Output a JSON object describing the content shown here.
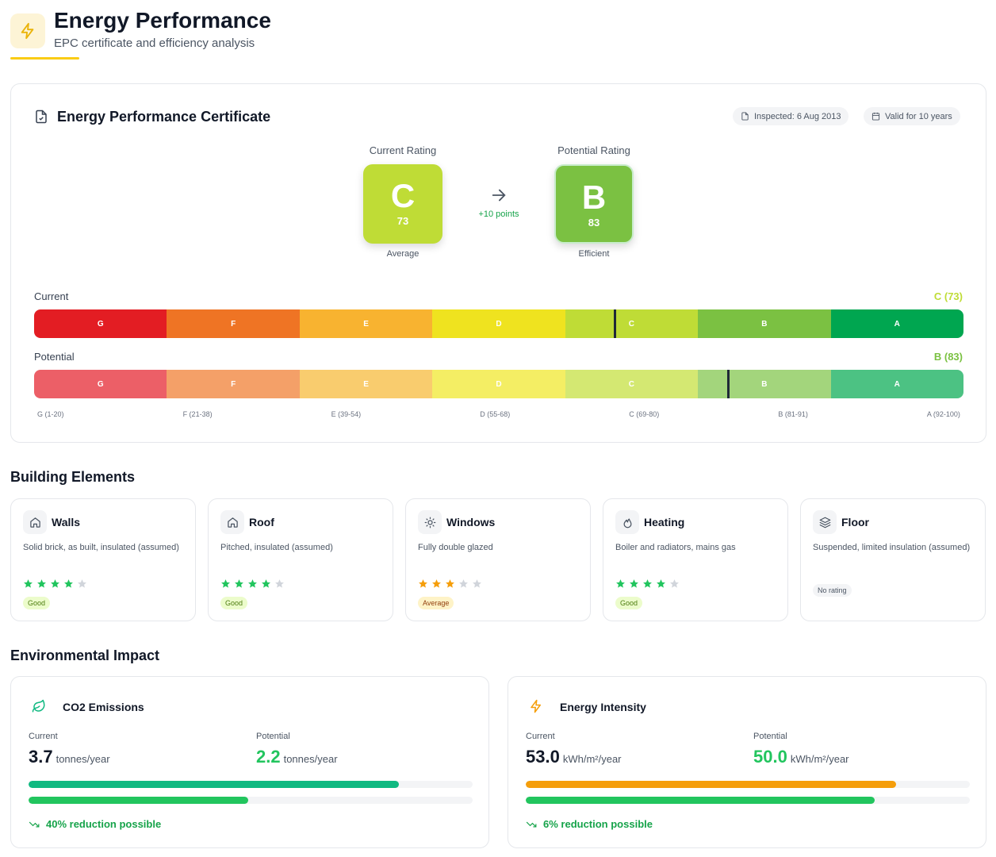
{
  "header": {
    "title": "Energy Performance",
    "subtitle": "EPC certificate and efficiency analysis"
  },
  "certificate": {
    "title": "Energy Performance Certificate",
    "inspected": "Inspected: 6 Aug 2013",
    "validity": "Valid for 10 years",
    "current": {
      "label": "Current Rating",
      "rating": "C",
      "score": 73,
      "description": "Average",
      "color": "#bfdc36"
    },
    "potential": {
      "label": "Potential Rating",
      "rating": "B",
      "score": 83,
      "description": "Efficient",
      "color": "#7bc142"
    },
    "improvement": "+10 points",
    "scale": {
      "current_label": "Current",
      "current_value": "C (73)",
      "potential_label": "Potential",
      "potential_value": "B (83)",
      "bands": [
        {
          "letter": "G",
          "range": "G (1-20)",
          "color": "#e31d23",
          "light": "#ec5f67"
        },
        {
          "letter": "F",
          "range": "F (21-38)",
          "color": "#ef7424",
          "light": "#f4a068"
        },
        {
          "letter": "E",
          "range": "E (39-54)",
          "color": "#f8b330",
          "light": "#f9cc6e"
        },
        {
          "letter": "D",
          "range": "D (55-68)",
          "color": "#efe31f",
          "light": "#f4ee64"
        },
        {
          "letter": "C",
          "range": "C (69-80)",
          "color": "#bfdc36",
          "light": "#d4e872"
        },
        {
          "letter": "B",
          "range": "B (81-91)",
          "color": "#7bc142",
          "light": "#a3d57c"
        },
        {
          "letter": "A",
          "range": "A (92-100)",
          "color": "#00a650",
          "light": "#4cc283"
        }
      ]
    }
  },
  "building_elements": {
    "title": "Building Elements",
    "items": [
      {
        "name": "Walls",
        "icon": "home",
        "description": "Solid brick, as built, insulated (assumed)",
        "rating": 4,
        "badge": "Good"
      },
      {
        "name": "Roof",
        "icon": "home",
        "description": "Pitched, insulated (assumed)",
        "rating": 4,
        "badge": "Good"
      },
      {
        "name": "Windows",
        "icon": "sun",
        "description": "Fully double glazed",
        "rating": 3,
        "badge": "Average"
      },
      {
        "name": "Heating",
        "icon": "flame",
        "description": "Boiler and radiators, mains gas",
        "rating": 4,
        "badge": "Good"
      },
      {
        "name": "Floor",
        "icon": "layers",
        "description": "Suspended, limited insulation (assumed)",
        "rating": null,
        "badge": "No rating"
      }
    ]
  },
  "environmental_impact": {
    "title": "Environmental Impact",
    "cards": [
      {
        "title": "CO2 Emissions",
        "icon": "leaf",
        "icon_color": "#10b981",
        "current_label": "Current",
        "current": 3.7,
        "potential_label": "Potential",
        "potential": 2.2,
        "unit": "tonnes/year",
        "current_color": "#10b981",
        "potential_color": "#22c55e",
        "reduction": "40% reduction possible"
      },
      {
        "title": "Energy Intensity",
        "icon": "bolt",
        "icon_color": "#f59e0b",
        "current_label": "Current",
        "current": {
          "value": 53,
          "label": "53.0"
        },
        "potential_label": "Potential",
        "potential": {
          "value": 50,
          "label": "50.0"
        },
        "unit": "kWh/m²/year",
        "current_color": "#f59e0b",
        "potential_color": "#22c55e",
        "reduction": "6% reduction possible"
      }
    ]
  }
}
